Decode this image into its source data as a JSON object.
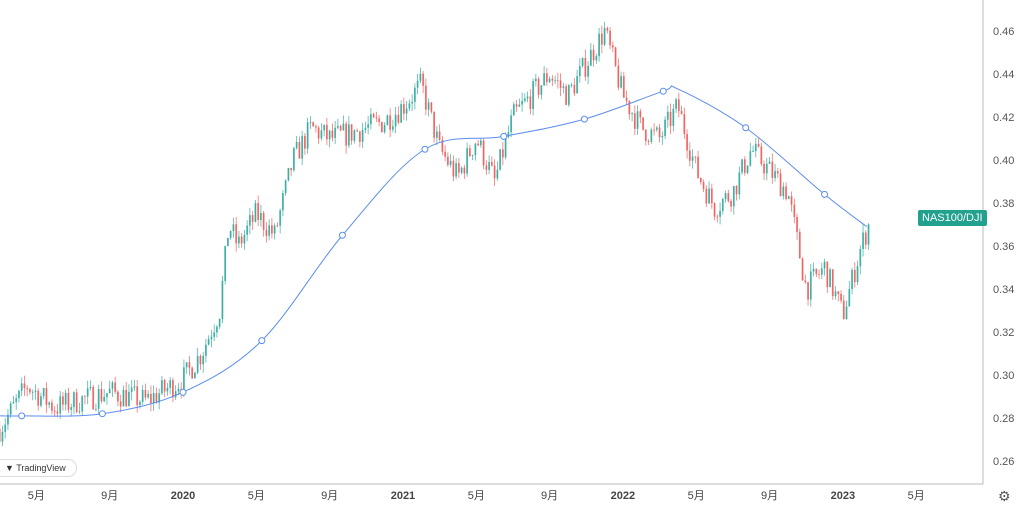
{
  "symbol_label": "NAS100/DJI",
  "logo_text": "TradingView",
  "colors": {
    "up": "#26a69a",
    "down": "#ef5350",
    "ma": "#5b8def",
    "label_bg": "#22a18f"
  },
  "chart_data": {
    "type": "candlestick",
    "title": "NAS100/DJI",
    "ylim": [
      0.25,
      0.472
    ],
    "y_ticks": [
      "0.46",
      "0.44",
      "0.42",
      "0.40",
      "0.38",
      "0.36",
      "0.34",
      "0.32",
      "0.30",
      "0.28",
      "0.26"
    ],
    "x_unit": "months since 2020-01",
    "x_ticks": [
      {
        "m": -8,
        "label": "5月"
      },
      {
        "m": -4,
        "label": "9月"
      },
      {
        "m": 0,
        "label": "2020"
      },
      {
        "m": 4,
        "label": "5月"
      },
      {
        "m": 8,
        "label": "9月"
      },
      {
        "m": 12,
        "label": "2021"
      },
      {
        "m": 16,
        "label": "5月"
      },
      {
        "m": 20,
        "label": "9月"
      },
      {
        "m": 24,
        "label": "2022"
      },
      {
        "m": 28,
        "label": "5月"
      },
      {
        "m": 32,
        "label": "9月"
      },
      {
        "m": 36,
        "label": "2023"
      },
      {
        "m": 40,
        "label": "5月"
      }
    ],
    "price_path": [
      [
        -10,
        0.275
      ],
      [
        -8.5,
        0.295
      ],
      [
        -7,
        0.285
      ],
      [
        -4,
        0.292
      ],
      [
        -2,
        0.288
      ],
      [
        0,
        0.298
      ],
      [
        1,
        0.31
      ],
      [
        2,
        0.33
      ],
      [
        2.5,
        0.37
      ],
      [
        3,
        0.36
      ],
      [
        4,
        0.375
      ],
      [
        5,
        0.365
      ],
      [
        6,
        0.4
      ],
      [
        7,
        0.415
      ],
      [
        8,
        0.41
      ],
      [
        9,
        0.412
      ],
      [
        10,
        0.415
      ],
      [
        11,
        0.418
      ],
      [
        12,
        0.425
      ],
      [
        13,
        0.435
      ],
      [
        14,
        0.405
      ],
      [
        15,
        0.392
      ],
      [
        16,
        0.41
      ],
      [
        17,
        0.39
      ],
      [
        18,
        0.42
      ],
      [
        19,
        0.43
      ],
      [
        20,
        0.44
      ],
      [
        21,
        0.43
      ],
      [
        22,
        0.445
      ],
      [
        23,
        0.46
      ],
      [
        24,
        0.43
      ],
      [
        25,
        0.415
      ],
      [
        26,
        0.41
      ],
      [
        27,
        0.425
      ],
      [
        28,
        0.395
      ],
      [
        29,
        0.378
      ],
      [
        30,
        0.385
      ],
      [
        31,
        0.405
      ],
      [
        32,
        0.395
      ],
      [
        33,
        0.385
      ],
      [
        34,
        0.34
      ],
      [
        35,
        0.35
      ],
      [
        36,
        0.328
      ],
      [
        37,
        0.36
      ],
      [
        37.5,
        0.372
      ]
    ],
    "moving_average": [
      [
        -10,
        0.281
      ],
      [
        -8.8,
        0.281
      ],
      [
        -4.4,
        0.282
      ],
      [
        0,
        0.292
      ],
      [
        4.3,
        0.316
      ],
      [
        8.7,
        0.365
      ],
      [
        13.2,
        0.405
      ],
      [
        17.5,
        0.411
      ],
      [
        21.9,
        0.419
      ],
      [
        26.2,
        0.432
      ],
      [
        27,
        0.433
      ],
      [
        30.7,
        0.415
      ],
      [
        35,
        0.384
      ],
      [
        37.3,
        0.369
      ]
    ],
    "ma_markers": [
      -8.8,
      -4.4,
      0,
      4.3,
      8.7,
      13.2,
      17.5,
      21.9,
      26.2,
      30.7,
      35
    ]
  }
}
